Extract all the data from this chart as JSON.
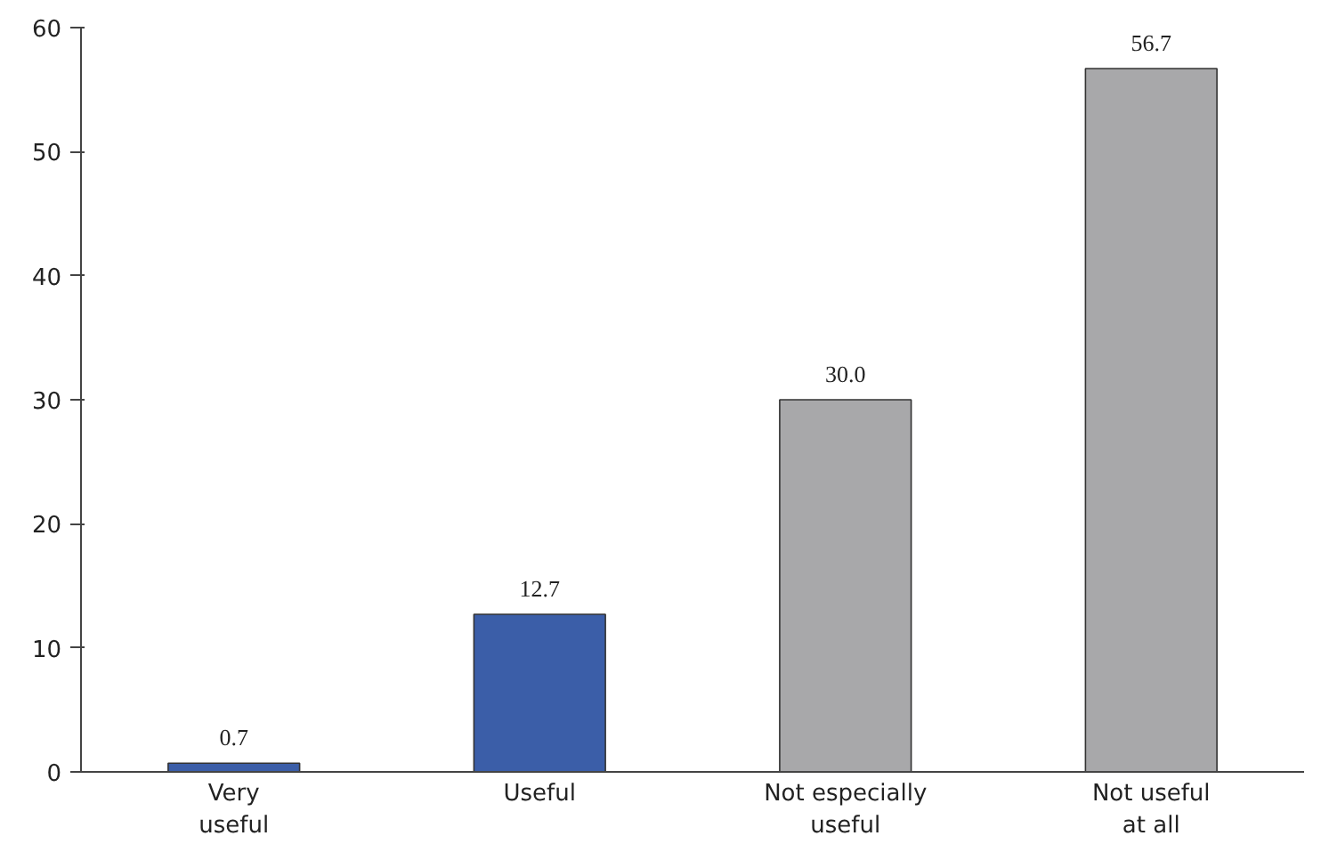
{
  "chart_data": {
    "type": "bar",
    "categories": [
      "Very\nuseful",
      "Useful",
      "Not especially\nuseful",
      "Not useful\nat all"
    ],
    "values": [
      0.7,
      12.7,
      30.0,
      56.7
    ],
    "value_labels": [
      "0.7",
      "12.7",
      "30.0",
      "56.7"
    ],
    "colors": [
      "#3b5ea8",
      "#3b5ea8",
      "#a8a8aa",
      "#a8a8aa"
    ],
    "ylim": [
      0,
      60
    ],
    "yticks": [
      0,
      10,
      20,
      30,
      40,
      50,
      60
    ],
    "grid": false
  }
}
